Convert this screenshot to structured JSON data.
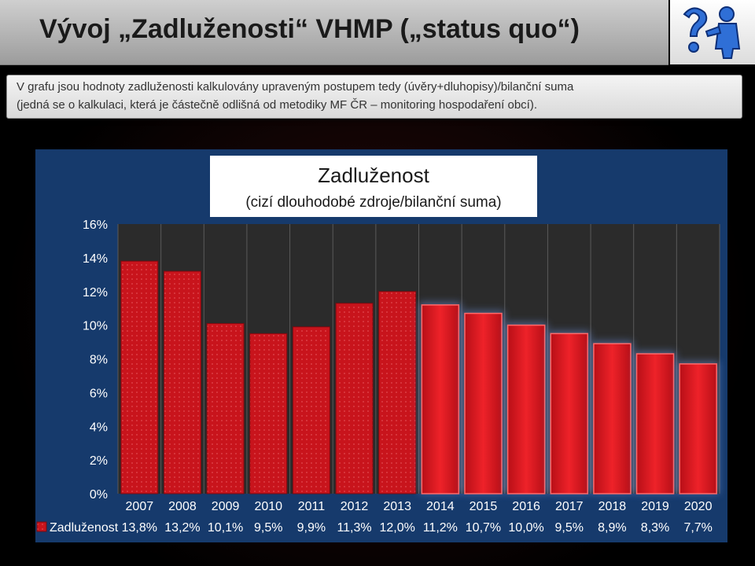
{
  "slide": {
    "title": "Vývoj „Zadluženosti“ VHMP („status quo“)",
    "note_line1": "V grafu jsou hodnoty zadluženosti kalkulovány upraveným postupem tedy (úvěry+dluhopisy)/bilanční suma",
    "note_line2": "(jedná se o kalkulaci, která je částečně odlišná od metodiky MF ČR – monitoring hospodaření obcí).",
    "logo_icon": "person-question-mark-icon"
  },
  "chart_data": {
    "type": "bar",
    "title": "Zadluženost",
    "subtitle": "(cizí dlouhodobé zdroje/bilanční suma)",
    "categories": [
      "2007",
      "2008",
      "2009",
      "2010",
      "2011",
      "2012",
      "2013",
      "2014",
      "2015",
      "2016",
      "2017",
      "2018",
      "2019",
      "2020"
    ],
    "series": [
      {
        "name": "Zadluženost",
        "values": [
          13.8,
          13.2,
          10.1,
          9.5,
          9.9,
          11.3,
          12.0,
          11.2,
          10.7,
          10.0,
          9.5,
          8.9,
          8.3,
          7.7
        ],
        "labels": [
          "13,8%",
          "13,2%",
          "10,1%",
          "9,5%",
          "9,9%",
          "11,3%",
          "12,0%",
          "11,2%",
          "10,7%",
          "10,0%",
          "9,5%",
          "8,9%",
          "8,3%",
          "7,7%"
        ]
      }
    ],
    "actual_count": 7,
    "y_ticks": [
      "0%",
      "2%",
      "4%",
      "6%",
      "8%",
      "10%",
      "12%",
      "14%",
      "16%"
    ],
    "ylim": [
      0,
      16
    ],
    "grid": true,
    "legend_placement": "data-table",
    "colors": {
      "bar_actual": "#c8141c",
      "bar_forecast": "#e0161e",
      "plot_bg": "#2b2b2b",
      "panel_bg": "#163a6c",
      "gridline": "#5a5a5a"
    }
  }
}
